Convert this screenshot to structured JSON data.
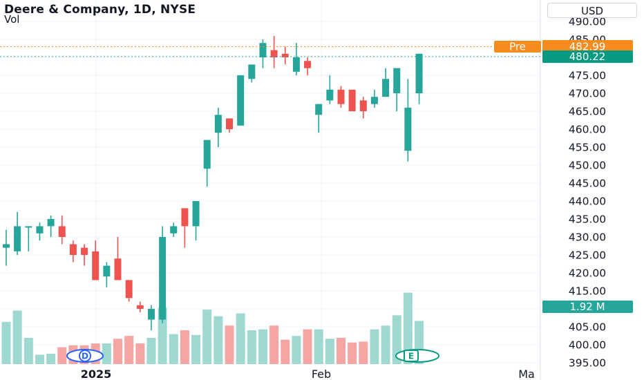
{
  "header": {
    "title": "Deere & Company, 1D, NYSE",
    "volume_label": "Vol",
    "currency": "USD"
  },
  "badges": {
    "pre_label": "Pre",
    "pre_price": "482.99",
    "last_price": "480.22",
    "volume": "1.92 M"
  },
  "colors": {
    "up": "#26a69a",
    "down": "#ef5350",
    "volume_up": "#9fd8d1",
    "volume_down": "#f5a5a3",
    "pre_market": "#f68b1e",
    "grid": "#f0f3fa",
    "event_dividend": "#2962ff",
    "event_earnings": "#089981"
  },
  "events": {
    "dividend": "D",
    "earnings": "E"
  },
  "chart_data": {
    "type": "candlestick",
    "title": "Deere & Company, 1D, NYSE",
    "ylim": [
      394,
      491
    ],
    "y_ticks": [
      "490.00",
      "485.00",
      "480.00",
      "475.00",
      "470.00",
      "465.00",
      "460.00",
      "455.00",
      "450.00",
      "445.00",
      "440.00",
      "435.00",
      "430.00",
      "425.00",
      "420.00",
      "415.00",
      "410.00",
      "405.00",
      "400.00",
      "395.00"
    ],
    "x_ticks": [
      "2025",
      "Feb",
      "Ma"
    ],
    "x_tick_bold": [
      "2025"
    ],
    "pre_market_price": 482.99,
    "last_price": 480.22,
    "last_volume_label": "1.92 M",
    "candles": [
      {
        "o": 427,
        "h": 432,
        "l": 422,
        "c": 428,
        "v": 45
      },
      {
        "o": 426,
        "h": 437,
        "l": 425,
        "c": 433,
        "v": 57
      },
      {
        "o": 433,
        "h": 433,
        "l": 426,
        "c": 433,
        "v": 28
      },
      {
        "o": 431,
        "h": 434,
        "l": 429,
        "c": 433,
        "v": 10
      },
      {
        "o": 433,
        "h": 436,
        "l": 430,
        "c": 435,
        "v": 11
      },
      {
        "o": 433,
        "h": 436,
        "l": 428,
        "c": 430,
        "v": 18
      },
      {
        "o": 428,
        "h": 429,
        "l": 423,
        "c": 425,
        "v": 20
      },
      {
        "o": 427,
        "h": 428,
        "l": 422,
        "c": 425,
        "v": 20
      },
      {
        "o": 426,
        "h": 429,
        "l": 418,
        "c": 418,
        "v": 22
      },
      {
        "o": 419,
        "h": 423,
        "l": 416,
        "c": 422,
        "v": 22
      },
      {
        "o": 424,
        "h": 430,
        "l": 418,
        "c": 418,
        "v": 27
      },
      {
        "o": 418,
        "h": 418,
        "l": 412,
        "c": 413,
        "v": 30
      },
      {
        "o": 411,
        "h": 412,
        "l": 409,
        "c": 410,
        "v": 22
      },
      {
        "o": 407,
        "h": 411,
        "l": 404,
        "c": 410,
        "v": 28
      },
      {
        "o": 407,
        "h": 433,
        "l": 406,
        "c": 430,
        "v": 60
      },
      {
        "o": 431,
        "h": 434,
        "l": 430,
        "c": 433,
        "v": 32
      },
      {
        "o": 438,
        "h": 438,
        "l": 427,
        "c": 433,
        "v": 36
      },
      {
        "o": 433,
        "h": 440,
        "l": 429,
        "c": 440,
        "v": 31
      },
      {
        "o": 449,
        "h": 457,
        "l": 444,
        "c": 457,
        "v": 58
      },
      {
        "o": 459,
        "h": 466,
        "l": 455,
        "c": 464,
        "v": 51
      },
      {
        "o": 463,
        "h": 463,
        "l": 459,
        "c": 460,
        "v": 41
      },
      {
        "o": 461,
        "h": 475,
        "l": 461,
        "c": 475,
        "v": 54
      },
      {
        "o": 474,
        "h": 478,
        "l": 473,
        "c": 478,
        "v": 36
      },
      {
        "o": 480,
        "h": 485,
        "l": 477,
        "c": 484,
        "v": 37
      },
      {
        "o": 482,
        "h": 486,
        "l": 477,
        "c": 480,
        "v": 41
      },
      {
        "o": 481,
        "h": 483,
        "l": 478,
        "c": 480,
        "v": 26
      },
      {
        "o": 476,
        "h": 484,
        "l": 475,
        "c": 480,
        "v": 30
      },
      {
        "o": 479,
        "h": 480,
        "l": 475,
        "c": 477,
        "v": 37
      },
      {
        "o": 464,
        "h": 467,
        "l": 459,
        "c": 467,
        "v": 37
      },
      {
        "o": 468,
        "h": 475,
        "l": 467,
        "c": 471,
        "v": 27
      },
      {
        "o": 471,
        "h": 472,
        "l": 466,
        "c": 467,
        "v": 28
      },
      {
        "o": 471,
        "h": 471,
        "l": 465,
        "c": 465,
        "v": 23
      },
      {
        "o": 468,
        "h": 469,
        "l": 463,
        "c": 465,
        "v": 24
      },
      {
        "o": 467,
        "h": 471,
        "l": 466,
        "c": 469,
        "v": 37
      },
      {
        "o": 469,
        "h": 477,
        "l": 469,
        "c": 474,
        "v": 41
      },
      {
        "o": 470,
        "h": 477,
        "l": 465,
        "c": 477,
        "v": 52
      },
      {
        "o": 454,
        "h": 474,
        "l": 451,
        "c": 466,
        "v": 76
      },
      {
        "o": 470,
        "h": 481,
        "l": 467,
        "c": 481,
        "v": 46
      }
    ]
  }
}
